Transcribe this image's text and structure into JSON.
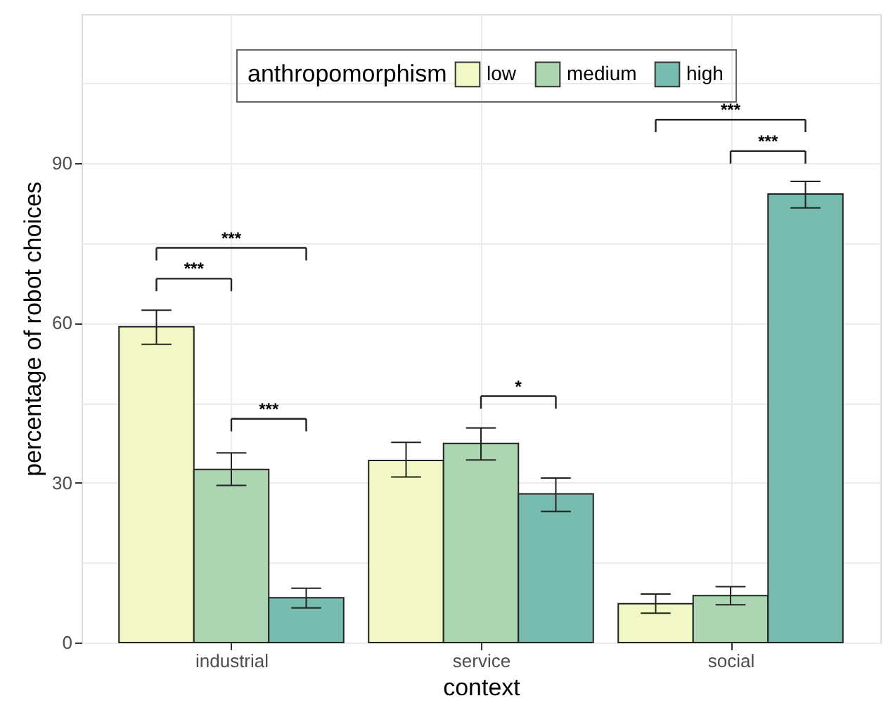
{
  "chart_data": {
    "type": "bar",
    "xlabel": "context",
    "ylabel": "percentage of robot choices",
    "legend_title": "anthropomorphism",
    "categories": [
      "industrial",
      "service",
      "social"
    ],
    "series": [
      {
        "name": "low",
        "color": "#f1f8c6",
        "values": [
          59.3,
          34.2,
          7.3
        ],
        "errors": [
          [
            56,
            62.4
          ],
          [
            31.1,
            37.6
          ],
          [
            5.5,
            9.1
          ]
        ]
      },
      {
        "name": "medium",
        "color": "#acd5b1",
        "values": [
          32.5,
          37.4,
          8.8
        ],
        "errors": [
          [
            29.5,
            35.6
          ],
          [
            34.3,
            40.3
          ],
          [
            7.1,
            10.5
          ]
        ]
      },
      {
        "name": "high",
        "color": "#78bcaf",
        "values": [
          8.4,
          27.9,
          84.2
        ],
        "errors": [
          [
            6.5,
            10.2
          ],
          [
            24.6,
            30.9
          ],
          [
            81.6,
            86.6
          ]
        ]
      }
    ],
    "ylim": [
      0,
      118
    ],
    "yticks": [
      0,
      {
        "value": 15,
        "label": null
      },
      30,
      {
        "value": 45,
        "label": null
      },
      60,
      {
        "value": 75,
        "label": null
      },
      90,
      {
        "value": 105,
        "label": null
      }
    ],
    "grid": true,
    "legend": "top",
    "annotations": [
      "***",
      "***",
      "***",
      "*",
      "***",
      "***"
    ]
  }
}
